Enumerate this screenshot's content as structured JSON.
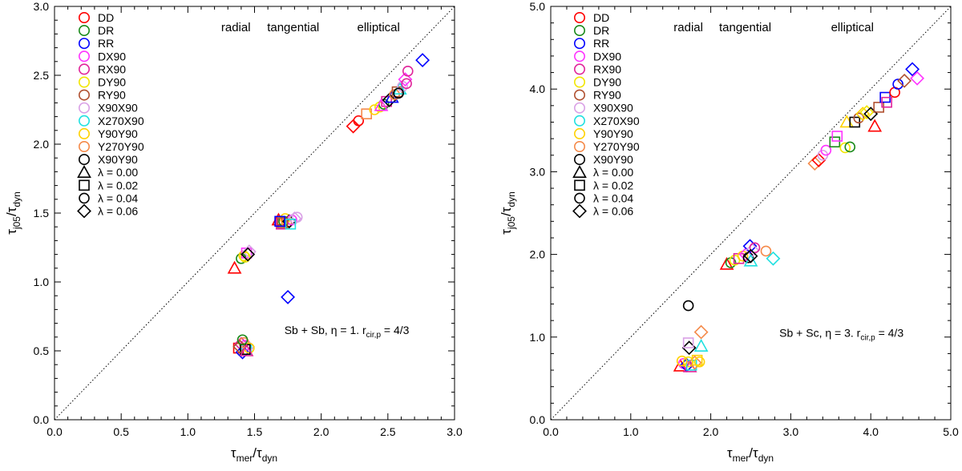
{
  "legend_labels": [
    "DD",
    "DR",
    "RR",
    "DX90",
    "RX90",
    "DY90",
    "RY90",
    "X90X90",
    "X270X90",
    "Y90Y90",
    "Y270Y90",
    "X90Y90"
  ],
  "legend_colors": [
    "#ff0000",
    "#1a8a1a",
    "#0000ff",
    "#ff33ff",
    "#e0249a",
    "#f2e600",
    "#b05030",
    "#d9a0e6",
    "#1fe0e0",
    "#ffd100",
    "#f58a4a",
    "#000000"
  ],
  "legend_shapes": [
    {
      "shape": "triangle",
      "label": "λ = 0.00"
    },
    {
      "shape": "square",
      "label": "λ = 0.02"
    },
    {
      "shape": "circle",
      "label": "λ = 0.04"
    },
    {
      "shape": "diamond",
      "label": "λ = 0.06"
    }
  ],
  "chart_data": [
    {
      "type": "scatter",
      "title": "",
      "xlabel_main": "τ",
      "xlabel_sub": "mer",
      "xlabel_rest": "/τ",
      "xlabel_sub2": "dyn",
      "ylabel_main": "τ",
      "ylabel_sub": "j05",
      "ylabel_rest": "/τ",
      "ylabel_sub2": "dyn",
      "xlim": [
        0,
        3
      ],
      "ylim": [
        0,
        3
      ],
      "xticks": [
        0.0,
        0.5,
        1.0,
        1.5,
        2.0,
        2.5,
        3.0
      ],
      "yticks": [
        0.0,
        0.5,
        1.0,
        1.5,
        2.0,
        2.5,
        3.0
      ],
      "xtick_labels": [
        "0.0",
        "0.5",
        "1.0",
        "1.5",
        "2.0",
        "2.5",
        "3.0"
      ],
      "ytick_labels": [
        "0.0",
        "0.5",
        "1.0",
        "1.5",
        "2.0",
        "2.5",
        "3.0"
      ],
      "reference_line": "y = x (dotted)",
      "region_labels": [
        {
          "text": "radial",
          "x": 1.36,
          "y": 2.85
        },
        {
          "text": "tangential",
          "x": 1.79,
          "y": 2.85
        },
        {
          "text": "elliptical",
          "x": 2.43,
          "y": 2.85
        }
      ],
      "annotation": {
        "prefix": "Sb + Sb, η = 1. r",
        "sub": "cir,p",
        "suffix": " = 4/3",
        "x": 2.66,
        "y": 0.65
      },
      "points": [
        {
          "x": 1.38,
          "y": 0.52,
          "c": 0,
          "s": "square"
        },
        {
          "x": 1.4,
          "y": 0.55,
          "c": 4,
          "s": "diamond"
        },
        {
          "x": 1.41,
          "y": 0.49,
          "c": 2,
          "s": "diamond"
        },
        {
          "x": 1.43,
          "y": 0.54,
          "c": 3,
          "s": "circle"
        },
        {
          "x": 1.44,
          "y": 0.51,
          "c": 8,
          "s": "square"
        },
        {
          "x": 1.45,
          "y": 0.53,
          "c": 7,
          "s": "diamond"
        },
        {
          "x": 1.42,
          "y": 0.56,
          "c": 10,
          "s": "circle"
        },
        {
          "x": 1.46,
          "y": 0.52,
          "c": 9,
          "s": "circle"
        },
        {
          "x": 1.43,
          "y": 0.51,
          "c": 11,
          "s": "square"
        },
        {
          "x": 1.39,
          "y": 0.53,
          "c": 6,
          "s": "diamond"
        },
        {
          "x": 1.41,
          "y": 0.58,
          "c": 1,
          "s": "circle"
        },
        {
          "x": 1.44,
          "y": 0.5,
          "c": 4,
          "s": "triangle"
        },
        {
          "x": 1.35,
          "y": 1.1,
          "c": 0,
          "s": "triangle"
        },
        {
          "x": 1.4,
          "y": 1.17,
          "c": 1,
          "s": "circle"
        },
        {
          "x": 1.42,
          "y": 1.19,
          "c": 9,
          "s": "circle"
        },
        {
          "x": 1.44,
          "y": 1.21,
          "c": 3,
          "s": "square"
        },
        {
          "x": 1.46,
          "y": 1.22,
          "c": 7,
          "s": "diamond"
        },
        {
          "x": 1.43,
          "y": 1.18,
          "c": 5,
          "s": "circle"
        },
        {
          "x": 1.45,
          "y": 1.2,
          "c": 11,
          "s": "diamond"
        },
        {
          "x": 1.75,
          "y": 0.89,
          "c": 2,
          "s": "diamond"
        },
        {
          "x": 1.68,
          "y": 1.45,
          "c": 0,
          "s": "triangle"
        },
        {
          "x": 1.7,
          "y": 1.42,
          "c": 4,
          "s": "square"
        },
        {
          "x": 1.72,
          "y": 1.44,
          "c": 1,
          "s": "circle"
        },
        {
          "x": 1.73,
          "y": 1.46,
          "c": 9,
          "s": "circle"
        },
        {
          "x": 1.74,
          "y": 1.43,
          "c": 10,
          "s": "circle"
        },
        {
          "x": 1.76,
          "y": 1.44,
          "c": 11,
          "s": "diamond"
        },
        {
          "x": 1.78,
          "y": 1.45,
          "c": 3,
          "s": "circle"
        },
        {
          "x": 1.8,
          "y": 1.46,
          "c": 7,
          "s": "diamond"
        },
        {
          "x": 1.82,
          "y": 1.47,
          "c": 7,
          "s": "circle"
        },
        {
          "x": 1.71,
          "y": 1.43,
          "c": 6,
          "s": "square"
        },
        {
          "x": 1.77,
          "y": 1.42,
          "c": 8,
          "s": "square"
        },
        {
          "x": 1.69,
          "y": 1.44,
          "c": 2,
          "s": "square"
        },
        {
          "x": 2.24,
          "y": 2.13,
          "c": 0,
          "s": "diamond"
        },
        {
          "x": 2.28,
          "y": 2.17,
          "c": 0,
          "s": "circle"
        },
        {
          "x": 2.34,
          "y": 2.22,
          "c": 10,
          "s": "square"
        },
        {
          "x": 2.4,
          "y": 2.25,
          "c": 9,
          "s": "circle"
        },
        {
          "x": 2.44,
          "y": 2.27,
          "c": 5,
          "s": "circle"
        },
        {
          "x": 2.47,
          "y": 2.29,
          "c": 1,
          "s": "circle"
        },
        {
          "x": 2.49,
          "y": 2.31,
          "c": 4,
          "s": "square"
        },
        {
          "x": 2.51,
          "y": 2.32,
          "c": 11,
          "s": "diamond"
        },
        {
          "x": 2.53,
          "y": 2.34,
          "c": 2,
          "s": "triangle"
        },
        {
          "x": 2.55,
          "y": 2.36,
          "c": 10,
          "s": "circle"
        },
        {
          "x": 2.57,
          "y": 2.38,
          "c": 6,
          "s": "square"
        },
        {
          "x": 2.59,
          "y": 2.4,
          "c": 8,
          "s": "triangle"
        },
        {
          "x": 2.61,
          "y": 2.42,
          "c": 7,
          "s": "circle"
        },
        {
          "x": 2.63,
          "y": 2.47,
          "c": 3,
          "s": "diamond"
        },
        {
          "x": 2.64,
          "y": 2.44,
          "c": 4,
          "s": "circle"
        },
        {
          "x": 2.65,
          "y": 2.53,
          "c": 4,
          "s": "circle"
        },
        {
          "x": 2.76,
          "y": 2.61,
          "c": 2,
          "s": "diamond"
        },
        {
          "x": 2.58,
          "y": 2.37,
          "c": 11,
          "s": "circle"
        },
        {
          "x": 2.45,
          "y": 2.28,
          "c": 3,
          "s": "triangle"
        }
      ]
    },
    {
      "type": "scatter",
      "title": "",
      "xlabel_main": "τ",
      "xlabel_sub": "mer",
      "xlabel_rest": "/τ",
      "xlabel_sub2": "dyn",
      "ylabel_main": "τ",
      "ylabel_sub": "j05",
      "ylabel_rest": "/τ",
      "ylabel_sub2": "dyn",
      "xlim": [
        0,
        5
      ],
      "ylim": [
        0,
        5
      ],
      "xticks": [
        0.0,
        1.0,
        2.0,
        3.0,
        4.0,
        5.0
      ],
      "yticks": [
        0.0,
        1.0,
        2.0,
        3.0,
        4.0,
        5.0
      ],
      "xtick_labels": [
        "0.0",
        "1.0",
        "2.0",
        "3.0",
        "4.0",
        "5.0"
      ],
      "ytick_labels": [
        "0.0",
        "1.0",
        "2.0",
        "3.0",
        "4.0",
        "5.0"
      ],
      "reference_line": "y = x (dotted)",
      "region_labels": [
        {
          "text": "radial",
          "x": 1.72,
          "y": 4.75
        },
        {
          "text": "tangential",
          "x": 2.43,
          "y": 4.75
        },
        {
          "text": "elliptical",
          "x": 3.77,
          "y": 4.75
        }
      ],
      "annotation": {
        "prefix": "Sb + Sc, η = 3. r",
        "sub": "cir,p",
        "suffix": " = 4/3",
        "x": 4.41,
        "y": 1.05
      },
      "points": [
        {
          "x": 1.62,
          "y": 0.65,
          "c": 0,
          "s": "triangle"
        },
        {
          "x": 1.66,
          "y": 0.68,
          "c": 3,
          "s": "circle"
        },
        {
          "x": 1.7,
          "y": 0.66,
          "c": 2,
          "s": "diamond"
        },
        {
          "x": 1.72,
          "y": 0.7,
          "c": 5,
          "s": "circle"
        },
        {
          "x": 1.74,
          "y": 0.64,
          "c": 4,
          "s": "triangle"
        },
        {
          "x": 1.76,
          "y": 0.66,
          "c": 8,
          "s": "square"
        },
        {
          "x": 1.64,
          "y": 0.71,
          "c": 9,
          "s": "circle"
        },
        {
          "x": 1.8,
          "y": 0.69,
          "c": 10,
          "s": "diamond"
        },
        {
          "x": 1.83,
          "y": 0.72,
          "c": 9,
          "s": "square"
        },
        {
          "x": 1.86,
          "y": 0.7,
          "c": 9,
          "s": "circle"
        },
        {
          "x": 1.73,
          "y": 0.87,
          "c": 11,
          "s": "diamond"
        },
        {
          "x": 1.72,
          "y": 0.93,
          "c": 7,
          "s": "square"
        },
        {
          "x": 1.72,
          "y": 1.38,
          "c": 11,
          "s": "circle"
        },
        {
          "x": 1.88,
          "y": 1.06,
          "c": 10,
          "s": "diamond"
        },
        {
          "x": 1.88,
          "y": 0.89,
          "c": 8,
          "s": "triangle"
        },
        {
          "x": 2.2,
          "y": 1.88,
          "c": 0,
          "s": "triangle"
        },
        {
          "x": 2.25,
          "y": 1.9,
          "c": 1,
          "s": "circle"
        },
        {
          "x": 2.3,
          "y": 1.93,
          "c": 5,
          "s": "circle"
        },
        {
          "x": 2.35,
          "y": 1.95,
          "c": 4,
          "s": "square"
        },
        {
          "x": 2.4,
          "y": 1.98,
          "c": 9,
          "s": "circle"
        },
        {
          "x": 2.44,
          "y": 2.0,
          "c": 3,
          "s": "diamond"
        },
        {
          "x": 2.47,
          "y": 1.96,
          "c": 11,
          "s": "circle"
        },
        {
          "x": 2.49,
          "y": 2.1,
          "c": 2,
          "s": "diamond"
        },
        {
          "x": 2.52,
          "y": 2.05,
          "c": 7,
          "s": "diamond"
        },
        {
          "x": 2.55,
          "y": 2.08,
          "c": 4,
          "s": "circle"
        },
        {
          "x": 2.5,
          "y": 1.92,
          "c": 8,
          "s": "triangle"
        },
        {
          "x": 2.69,
          "y": 2.04,
          "c": 10,
          "s": "circle"
        },
        {
          "x": 2.78,
          "y": 1.95,
          "c": 8,
          "s": "diamond"
        },
        {
          "x": 2.5,
          "y": 1.98,
          "c": 11,
          "s": "diamond"
        },
        {
          "x": 3.3,
          "y": 3.1,
          "c": 10,
          "s": "diamond"
        },
        {
          "x": 3.35,
          "y": 3.14,
          "c": 0,
          "s": "diamond"
        },
        {
          "x": 3.4,
          "y": 3.2,
          "c": 7,
          "s": "circle"
        },
        {
          "x": 3.44,
          "y": 3.26,
          "c": 3,
          "s": "circle"
        },
        {
          "x": 3.55,
          "y": 3.36,
          "c": 1,
          "s": "square"
        },
        {
          "x": 3.58,
          "y": 3.43,
          "c": 3,
          "s": "square"
        },
        {
          "x": 3.68,
          "y": 3.29,
          "c": 5,
          "s": "circle"
        },
        {
          "x": 3.74,
          "y": 3.3,
          "c": 1,
          "s": "circle"
        },
        {
          "x": 3.7,
          "y": 3.6,
          "c": 9,
          "s": "triangle"
        },
        {
          "x": 3.8,
          "y": 3.6,
          "c": 11,
          "s": "square"
        },
        {
          "x": 3.85,
          "y": 3.65,
          "c": 6,
          "s": "circle"
        },
        {
          "x": 3.9,
          "y": 3.7,
          "c": 9,
          "s": "diamond"
        },
        {
          "x": 3.95,
          "y": 3.72,
          "c": 5,
          "s": "diamond"
        },
        {
          "x": 4.0,
          "y": 3.7,
          "c": 11,
          "s": "diamond"
        },
        {
          "x": 4.05,
          "y": 3.55,
          "c": 0,
          "s": "triangle"
        },
        {
          "x": 4.1,
          "y": 3.78,
          "c": 6,
          "s": "square"
        },
        {
          "x": 4.18,
          "y": 3.9,
          "c": 2,
          "s": "square"
        },
        {
          "x": 4.2,
          "y": 3.84,
          "c": 4,
          "s": "square"
        },
        {
          "x": 4.3,
          "y": 3.96,
          "c": 0,
          "s": "circle"
        },
        {
          "x": 4.34,
          "y": 4.06,
          "c": 2,
          "s": "circle"
        },
        {
          "x": 4.42,
          "y": 4.1,
          "c": 6,
          "s": "diamond"
        },
        {
          "x": 4.52,
          "y": 4.24,
          "c": 2,
          "s": "diamond"
        },
        {
          "x": 4.58,
          "y": 4.13,
          "c": 3,
          "s": "diamond"
        }
      ]
    }
  ]
}
